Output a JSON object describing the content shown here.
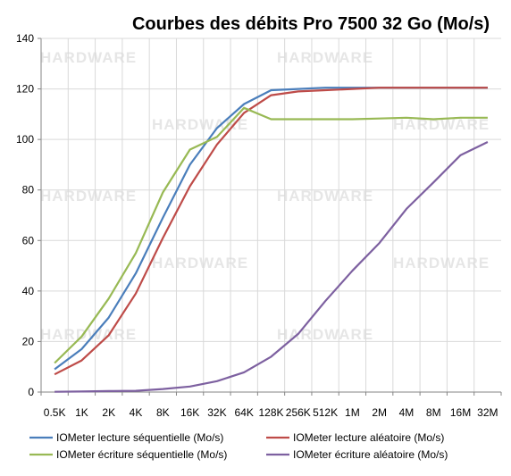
{
  "chart_data": {
    "type": "line",
    "title": "Courbes des débits Pro 7500 32 Go (Mo/s)",
    "xlabel": "",
    "ylabel": "",
    "ylim": [
      0,
      140
    ],
    "yticks": [
      0,
      20,
      40,
      60,
      80,
      100,
      120,
      140
    ],
    "grid": true,
    "legend_position": "bottom",
    "categories": [
      "0.5K",
      "1K",
      "2K",
      "4K",
      "8K",
      "16K",
      "32K",
      "64K",
      "128K",
      "256K",
      "512K",
      "1M",
      "2M",
      "4M",
      "8M",
      "16M",
      "32M"
    ],
    "series": [
      {
        "name": "IOMeter lecture séquentielle (Mo/s)",
        "color": "#4a7ebb",
        "values": [
          9,
          17,
          29.5,
          47,
          69,
          90,
          104.5,
          114,
          119.5,
          120,
          120.5,
          120.5,
          120.5,
          120.5,
          120.5,
          120.5,
          120.5
        ]
      },
      {
        "name": "IOMeter lecture aléatoire (Mo/s)",
        "color": "#be4b48",
        "values": [
          7,
          12.5,
          22.5,
          39,
          61,
          81.5,
          98,
          110.5,
          117.5,
          119,
          119.5,
          120,
          120.5,
          120.5,
          120.5,
          120.5,
          120.5
        ]
      },
      {
        "name": "IOMeter écriture séquentielle (Mo/s)",
        "color": "#98b954",
        "values": [
          11.5,
          22,
          37,
          55,
          79,
          96,
          101,
          112.5,
          108,
          108,
          108,
          108,
          108.3,
          108.6,
          108,
          108.6,
          108.6
        ]
      },
      {
        "name": "IOMeter écriture aléatoire (Mo/s)",
        "color": "#7d60a0",
        "values": [
          0.1,
          0.2,
          0.4,
          0.5,
          1.2,
          2.2,
          4.3,
          7.8,
          14,
          23,
          36,
          48,
          59,
          72.5,
          83,
          93.8,
          99
        ]
      }
    ]
  },
  "watermark": "HARDWARE"
}
